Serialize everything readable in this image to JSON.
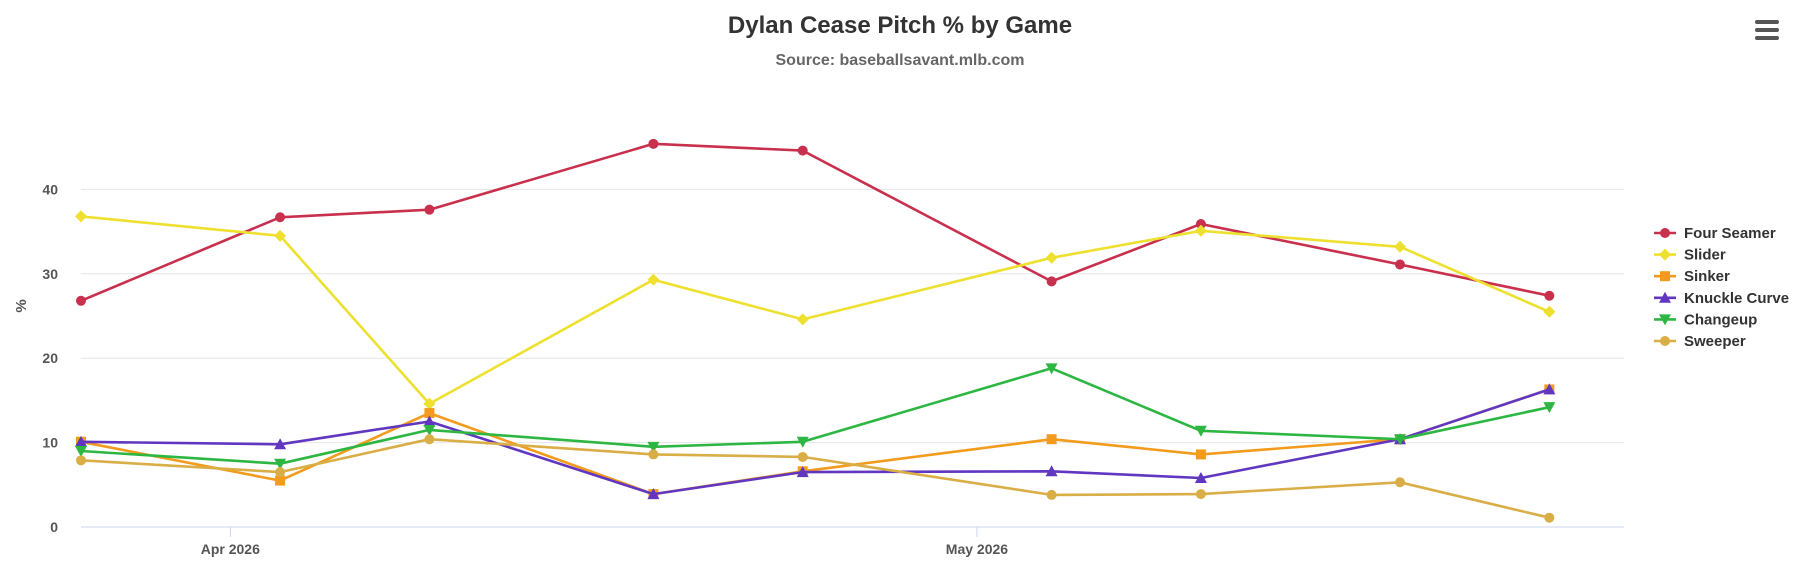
{
  "chart_data": {
    "type": "line",
    "title": "Dylan Cease Pitch % by Game",
    "subtitle": "Source: baseballsavant.mlb.com",
    "ylabel": "%",
    "xlabel": "",
    "ylim": [
      0,
      50
    ],
    "yticks": [
      0,
      10,
      20,
      30,
      40
    ],
    "xlim": [
      "2026-03-26",
      "2026-05-27"
    ],
    "xticks": [
      {
        "date": "2026-04-01",
        "label": "Apr 2026"
      },
      {
        "date": "2026-05-01",
        "label": "May 2026"
      }
    ],
    "x": [
      "2026-03-26",
      "2026-04-03",
      "2026-04-09",
      "2026-04-18",
      "2026-04-24",
      "2026-05-04",
      "2026-05-10",
      "2026-05-18",
      "2026-05-24"
    ],
    "grid": true,
    "legend_position": "right",
    "series": [
      {
        "name": "Four Seamer",
        "color": "#c8304e",
        "marker": "circle",
        "values": [
          26.8,
          36.7,
          37.6,
          45.4,
          44.6,
          29.1,
          35.9,
          31.1,
          27.4
        ]
      },
      {
        "name": "Slider",
        "color": "#ede02f",
        "marker": "diamond",
        "values": [
          36.8,
          34.5,
          14.6,
          29.3,
          24.6,
          31.9,
          35.1,
          33.2,
          25.5
        ]
      },
      {
        "name": "Sinker",
        "color": "#f29b1c",
        "marker": "square",
        "values": [
          10.1,
          5.5,
          13.5,
          3.9,
          6.6,
          10.4,
          8.6,
          10.4,
          16.3
        ]
      },
      {
        "name": "Knuckle Curve",
        "color": "#6137c1",
        "marker": "triangle",
        "values": [
          10.1,
          9.8,
          12.5,
          3.9,
          6.5,
          6.6,
          5.8,
          10.4,
          16.3
        ]
      },
      {
        "name": "Changeup",
        "color": "#2db742",
        "marker": "triangle-down",
        "values": [
          9.0,
          7.5,
          11.5,
          9.5,
          10.1,
          18.8,
          11.4,
          10.4,
          14.2
        ]
      },
      {
        "name": "Sweeper",
        "color": "#d9ae47",
        "marker": "circle",
        "values": [
          7.9,
          6.5,
          10.4,
          8.6,
          8.3,
          3.8,
          3.9,
          5.3,
          1.1
        ]
      }
    ]
  }
}
